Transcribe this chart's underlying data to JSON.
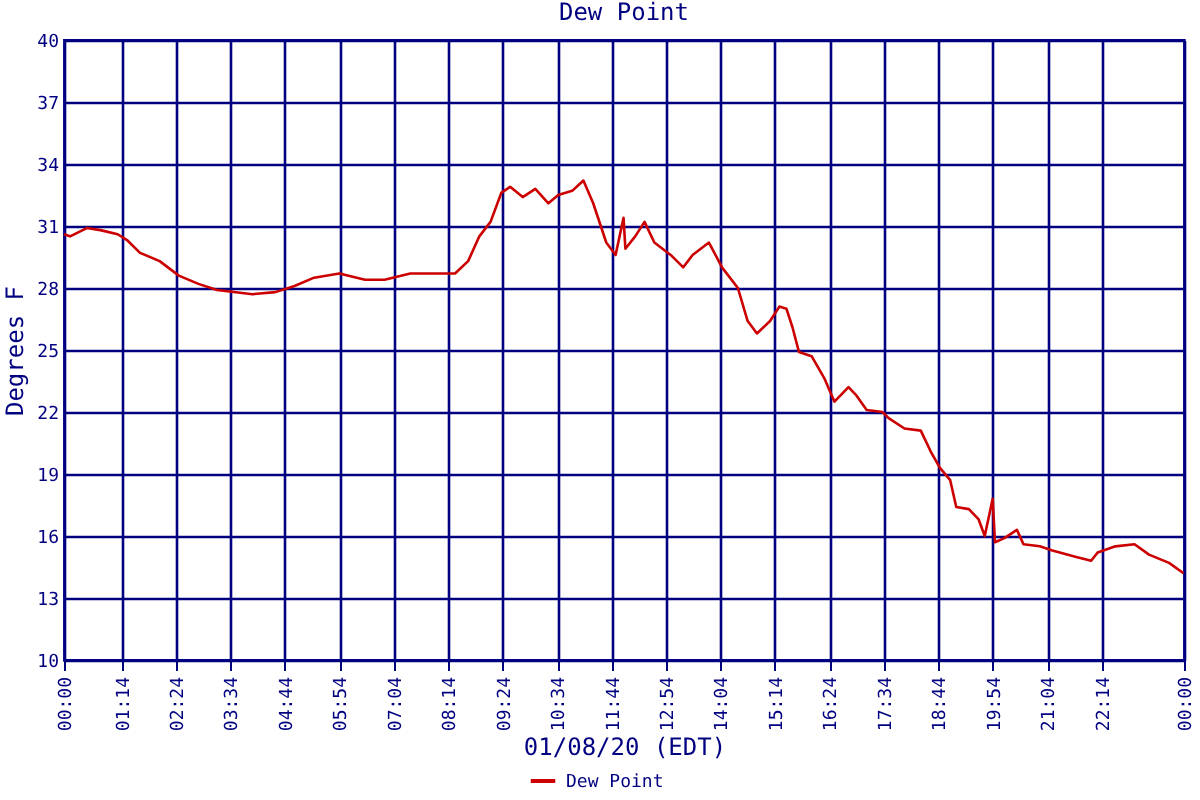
{
  "chart_data": {
    "type": "line",
    "title": "Dew Point",
    "xlabel": "01/08/20 (EDT)",
    "ylabel": "Degrees F",
    "xlim": [
      0,
      24
    ],
    "xticks": [
      {
        "value": 0,
        "label": "00:00"
      },
      {
        "value": 1.233,
        "label": "01:14"
      },
      {
        "value": 2.4,
        "label": "02:24"
      },
      {
        "value": 3.567,
        "label": "03:34"
      },
      {
        "value": 4.733,
        "label": "04:44"
      },
      {
        "value": 5.9,
        "label": "05:54"
      },
      {
        "value": 7.067,
        "label": "07:04"
      },
      {
        "value": 8.233,
        "label": "08:14"
      },
      {
        "value": 9.4,
        "label": "09:24"
      },
      {
        "value": 10.567,
        "label": "10:34"
      },
      {
        "value": 11.733,
        "label": "11:44"
      },
      {
        "value": 12.9,
        "label": "12:54"
      },
      {
        "value": 14.067,
        "label": "14:04"
      },
      {
        "value": 15.233,
        "label": "15:14"
      },
      {
        "value": 16.4,
        "label": "16:24"
      },
      {
        "value": 17.567,
        "label": "17:34"
      },
      {
        "value": 18.733,
        "label": "18:44"
      },
      {
        "value": 19.9,
        "label": "19:54"
      },
      {
        "value": 21.067,
        "label": "21:04"
      },
      {
        "value": 22.233,
        "label": "22:14"
      },
      {
        "value": 24,
        "label": "00:00"
      }
    ],
    "ylim": [
      10,
      40
    ],
    "yticks": [
      10,
      13,
      16,
      19,
      22,
      25,
      28,
      31,
      34,
      37,
      40
    ],
    "grid": true,
    "legend": "bottom",
    "marker": "none",
    "line_style": "solid",
    "series": [
      {
        "name": "Dew Point",
        "color": "#cc0000",
        "x": [
          0,
          0.13,
          0.49,
          0.78,
          1.15,
          1.36,
          1.63,
          2.05,
          2.46,
          2.88,
          3.28,
          4.04,
          4.53,
          4.94,
          5.36,
          5.9,
          6.45,
          6.87,
          7.42,
          7.84,
          8.38,
          8.66,
          8.9,
          9.14,
          9.37,
          9.56,
          9.83,
          10.1,
          10.38,
          10.59,
          10.89,
          11.13,
          11.34,
          11.62,
          11.82,
          11.99,
          12.03,
          12.24,
          12.44,
          12.65,
          13.0,
          13.27,
          13.47,
          13.82,
          14.1,
          14.44,
          14.65,
          14.85,
          15.13,
          15.33,
          15.48,
          15.61,
          15.75,
          16.02,
          16.3,
          16.51,
          16.81,
          16.98,
          17.2,
          17.54,
          17.67,
          18.01,
          18.36,
          18.57,
          18.77,
          18.99,
          19.12,
          19.39,
          19.6,
          19.73,
          19.9,
          19.95,
          20.15,
          20.42,
          20.56,
          20.91,
          21.18,
          21.67,
          22.01,
          22.15,
          22.53,
          22.94,
          23.25,
          23.68,
          23.99
        ],
        "values": [
          30.6,
          30.5,
          30.9,
          30.8,
          30.6,
          30.3,
          29.7,
          29.3,
          28.6,
          28.2,
          27.9,
          27.7,
          27.8,
          28.1,
          28.5,
          28.7,
          28.4,
          28.4,
          28.7,
          28.7,
          28.7,
          29.3,
          30.5,
          31.2,
          32.6,
          32.9,
          32.4,
          32.8,
          32.1,
          32.5,
          32.7,
          33.2,
          32.1,
          30.2,
          29.6,
          31.4,
          29.9,
          30.5,
          31.2,
          30.2,
          29.6,
          29.0,
          29.6,
          30.2,
          29.0,
          28.0,
          26.4,
          25.8,
          26.4,
          27.1,
          27.0,
          26.1,
          24.9,
          24.7,
          23.6,
          22.5,
          23.2,
          22.8,
          22.1,
          22.0,
          21.7,
          21.2,
          21.1,
          20.1,
          19.3,
          18.7,
          17.4,
          17.3,
          16.8,
          16.0,
          17.8,
          15.7,
          15.9,
          16.3,
          15.6,
          15.5,
          15.3,
          15.0,
          14.8,
          15.2,
          15.5,
          15.6,
          15.1,
          14.7,
          14.2
        ]
      }
    ]
  }
}
